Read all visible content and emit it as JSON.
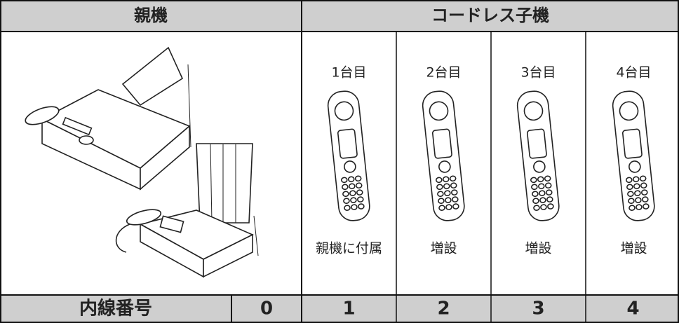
{
  "header": {
    "parent": "親機",
    "cordless": "コードレス子機"
  },
  "handsets": [
    {
      "label": "1台目",
      "note": "親機に付属"
    },
    {
      "label": "2台目",
      "note": "増設"
    },
    {
      "label": "3台目",
      "note": "増設"
    },
    {
      "label": "4台目",
      "note": "増設"
    }
  ],
  "footer": {
    "label": "内線番号",
    "numbers": [
      0,
      1,
      2,
      3,
      4
    ]
  }
}
